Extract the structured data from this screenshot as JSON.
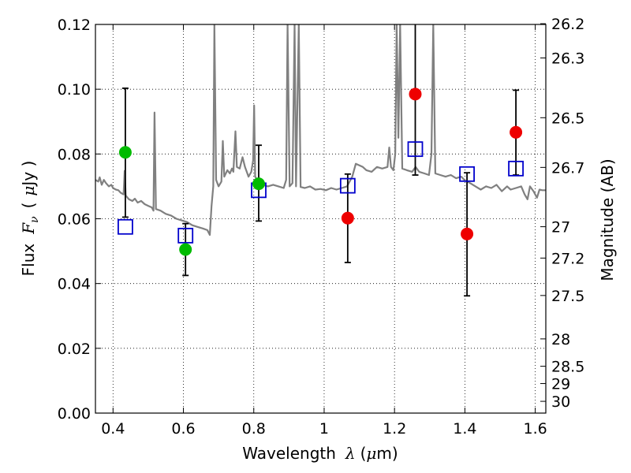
{
  "chart_data": {
    "type": "scatter",
    "xlabel": {
      "prefix": "Wavelength",
      "symbol": "λ",
      "unit_open": "(",
      "unit_mu": "μ",
      "unit_rest": "m)"
    },
    "ylabel": {
      "prefix": "Flux",
      "symbol": "F",
      "subscript": "ν",
      "unit_open": "(",
      "unit_mu": "μ",
      "unit_rest": "Jy )"
    },
    "y2label": "Magnitude (AB)",
    "xlim": [
      0.35,
      1.63
    ],
    "ylim": [
      0.0,
      0.12
    ],
    "x_ticks": [
      {
        "value": 0.4,
        "label": "0.4"
      },
      {
        "value": 0.6,
        "label": "0.6"
      },
      {
        "value": 0.8,
        "label": "0.8"
      },
      {
        "value": 1.0,
        "label": "1"
      },
      {
        "value": 1.2,
        "label": "1.2"
      },
      {
        "value": 1.4,
        "label": "1.4"
      },
      {
        "value": 1.6,
        "label": "1.6"
      }
    ],
    "y_ticks": [
      {
        "value": 0.0,
        "label": "0.00"
      },
      {
        "value": 0.02,
        "label": "0.02"
      },
      {
        "value": 0.04,
        "label": "0.04"
      },
      {
        "value": 0.06,
        "label": "0.06"
      },
      {
        "value": 0.08,
        "label": "0.08"
      },
      {
        "value": 0.1,
        "label": "0.10"
      },
      {
        "value": 0.12,
        "label": "0.12"
      }
    ],
    "y2_ticks": [
      {
        "mag": 26.2,
        "label": "26.2"
      },
      {
        "mag": 26.3,
        "label": "26.3"
      },
      {
        "mag": 26.5,
        "label": "26.5"
      },
      {
        "mag": 26.7,
        "label": "26.7"
      },
      {
        "mag": 27.0,
        "label": "27"
      },
      {
        "mag": 27.2,
        "label": "27.2"
      },
      {
        "mag": 27.5,
        "label": "27.5"
      },
      {
        "mag": 28.0,
        "label": "28"
      },
      {
        "mag": 28.5,
        "label": "28.5"
      },
      {
        "mag": 29.0,
        "label": "29"
      },
      {
        "mag": 30.0,
        "label": "30"
      }
    ],
    "grid": true,
    "colors": {
      "spectrum": "#808080",
      "green": "#00bb00",
      "red": "#ee0000",
      "model_box": "#0000cc",
      "errorbar": "#000000"
    },
    "observed_green": [
      {
        "x": 0.435,
        "y": 0.0805,
        "yerr_low": 0.0605,
        "yerr_high": 0.1003
      },
      {
        "x": 0.606,
        "y": 0.0505,
        "yerr_low": 0.0425,
        "yerr_high": 0.0585
      },
      {
        "x": 0.814,
        "y": 0.0708,
        "yerr_low": 0.0593,
        "yerr_high": 0.0827
      }
    ],
    "observed_red": [
      {
        "x": 1.067,
        "y": 0.0602,
        "yerr_low": 0.0465,
        "yerr_high": 0.0738
      },
      {
        "x": 1.259,
        "y": 0.0985,
        "yerr_low": 0.0735,
        "yerr_high": 0.1235
      },
      {
        "x": 1.406,
        "y": 0.0553,
        "yerr_low": 0.0362,
        "yerr_high": 0.0742
      },
      {
        "x": 1.545,
        "y": 0.0867,
        "yerr_low": 0.0735,
        "yerr_high": 0.0997
      }
    ],
    "model_photometry": [
      {
        "x": 0.435,
        "y": 0.0575
      },
      {
        "x": 0.606,
        "y": 0.0548
      },
      {
        "x": 0.814,
        "y": 0.0688
      },
      {
        "x": 1.067,
        "y": 0.0702
      },
      {
        "x": 1.259,
        "y": 0.0815
      },
      {
        "x": 1.406,
        "y": 0.0738
      },
      {
        "x": 1.545,
        "y": 0.0755
      }
    ],
    "spectrum": [
      [
        0.35,
        0.072
      ],
      [
        0.358,
        0.0715
      ],
      [
        0.362,
        0.0728
      ],
      [
        0.368,
        0.0705
      ],
      [
        0.374,
        0.072
      ],
      [
        0.38,
        0.071
      ],
      [
        0.388,
        0.07
      ],
      [
        0.395,
        0.0705
      ],
      [
        0.4,
        0.0695
      ],
      [
        0.408,
        0.069
      ],
      [
        0.415,
        0.0688
      ],
      [
        0.422,
        0.068
      ],
      [
        0.43,
        0.0675
      ],
      [
        0.433,
        0.0748
      ],
      [
        0.436,
        0.0672
      ],
      [
        0.445,
        0.066
      ],
      [
        0.455,
        0.0655
      ],
      [
        0.462,
        0.0662
      ],
      [
        0.47,
        0.065
      ],
      [
        0.48,
        0.0655
      ],
      [
        0.49,
        0.0645
      ],
      [
        0.5,
        0.064
      ],
      [
        0.51,
        0.0635
      ],
      [
        0.515,
        0.0625
      ],
      [
        0.518,
        0.0928
      ],
      [
        0.522,
        0.063
      ],
      [
        0.535,
        0.0625
      ],
      [
        0.55,
        0.0615
      ],
      [
        0.565,
        0.061
      ],
      [
        0.58,
        0.06
      ],
      [
        0.595,
        0.0595
      ],
      [
        0.61,
        0.059
      ],
      [
        0.625,
        0.058
      ],
      [
        0.64,
        0.0575
      ],
      [
        0.655,
        0.057
      ],
      [
        0.668,
        0.0565
      ],
      [
        0.675,
        0.055
      ],
      [
        0.68,
        0.064
      ],
      [
        0.685,
        0.07
      ],
      [
        0.688,
        0.12
      ],
      [
        0.693,
        0.072
      ],
      [
        0.7,
        0.07
      ],
      [
        0.708,
        0.0715
      ],
      [
        0.712,
        0.084
      ],
      [
        0.716,
        0.073
      ],
      [
        0.725,
        0.075
      ],
      [
        0.732,
        0.074
      ],
      [
        0.738,
        0.0755
      ],
      [
        0.742,
        0.0745
      ],
      [
        0.748,
        0.087
      ],
      [
        0.752,
        0.076
      ],
      [
        0.76,
        0.0755
      ],
      [
        0.768,
        0.079
      ],
      [
        0.775,
        0.076
      ],
      [
        0.785,
        0.073
      ],
      [
        0.793,
        0.0745
      ],
      [
        0.798,
        0.078
      ],
      [
        0.801,
        0.095
      ],
      [
        0.804,
        0.073
      ],
      [
        0.81,
        0.072
      ],
      [
        0.815,
        0.0715
      ],
      [
        0.825,
        0.0705
      ],
      [
        0.84,
        0.07
      ],
      [
        0.855,
        0.0705
      ],
      [
        0.87,
        0.07
      ],
      [
        0.885,
        0.0695
      ],
      [
        0.892,
        0.072
      ],
      [
        0.896,
        0.12
      ],
      [
        0.902,
        0.07
      ],
      [
        0.91,
        0.071
      ],
      [
        0.916,
        0.12
      ],
      [
        0.92,
        0.07
      ],
      [
        0.928,
        0.12
      ],
      [
        0.933,
        0.0698
      ],
      [
        0.945,
        0.0695
      ],
      [
        0.96,
        0.07
      ],
      [
        0.975,
        0.069
      ],
      [
        0.99,
        0.0692
      ],
      [
        1.005,
        0.0688
      ],
      [
        1.02,
        0.0695
      ],
      [
        1.035,
        0.069
      ],
      [
        1.05,
        0.0695
      ],
      [
        1.065,
        0.07
      ],
      [
        1.08,
        0.073
      ],
      [
        1.09,
        0.077
      ],
      [
        1.1,
        0.0765
      ],
      [
        1.11,
        0.076
      ],
      [
        1.12,
        0.075
      ],
      [
        1.135,
        0.0745
      ],
      [
        1.15,
        0.076
      ],
      [
        1.165,
        0.0755
      ],
      [
        1.18,
        0.076
      ],
      [
        1.185,
        0.082
      ],
      [
        1.19,
        0.076
      ],
      [
        1.197,
        0.075
      ],
      [
        1.202,
        0.08
      ],
      [
        1.206,
        0.12
      ],
      [
        1.211,
        0.085
      ],
      [
        1.216,
        0.12
      ],
      [
        1.222,
        0.0755
      ],
      [
        1.235,
        0.075
      ],
      [
        1.25,
        0.0745
      ],
      [
        1.26,
        0.076
      ],
      [
        1.27,
        0.0745
      ],
      [
        1.285,
        0.074
      ],
      [
        1.298,
        0.0735
      ],
      [
        1.305,
        0.08
      ],
      [
        1.31,
        0.12
      ],
      [
        1.316,
        0.074
      ],
      [
        1.33,
        0.0735
      ],
      [
        1.345,
        0.073
      ],
      [
        1.36,
        0.0735
      ],
      [
        1.375,
        0.0725
      ],
      [
        1.39,
        0.073
      ],
      [
        1.4,
        0.0718
      ],
      [
        1.415,
        0.071
      ],
      [
        1.43,
        0.07
      ],
      [
        1.445,
        0.069
      ],
      [
        1.46,
        0.07
      ],
      [
        1.475,
        0.0695
      ],
      [
        1.49,
        0.0705
      ],
      [
        1.505,
        0.0685
      ],
      [
        1.52,
        0.07
      ],
      [
        1.53,
        0.069
      ],
      [
        1.545,
        0.0695
      ],
      [
        1.56,
        0.07
      ],
      [
        1.57,
        0.0675
      ],
      [
        1.578,
        0.066
      ],
      [
        1.585,
        0.07
      ],
      [
        1.595,
        0.0685
      ],
      [
        1.605,
        0.0665
      ],
      [
        1.612,
        0.069
      ],
      [
        1.62,
        0.0688
      ],
      [
        1.63,
        0.0688
      ]
    ]
  }
}
